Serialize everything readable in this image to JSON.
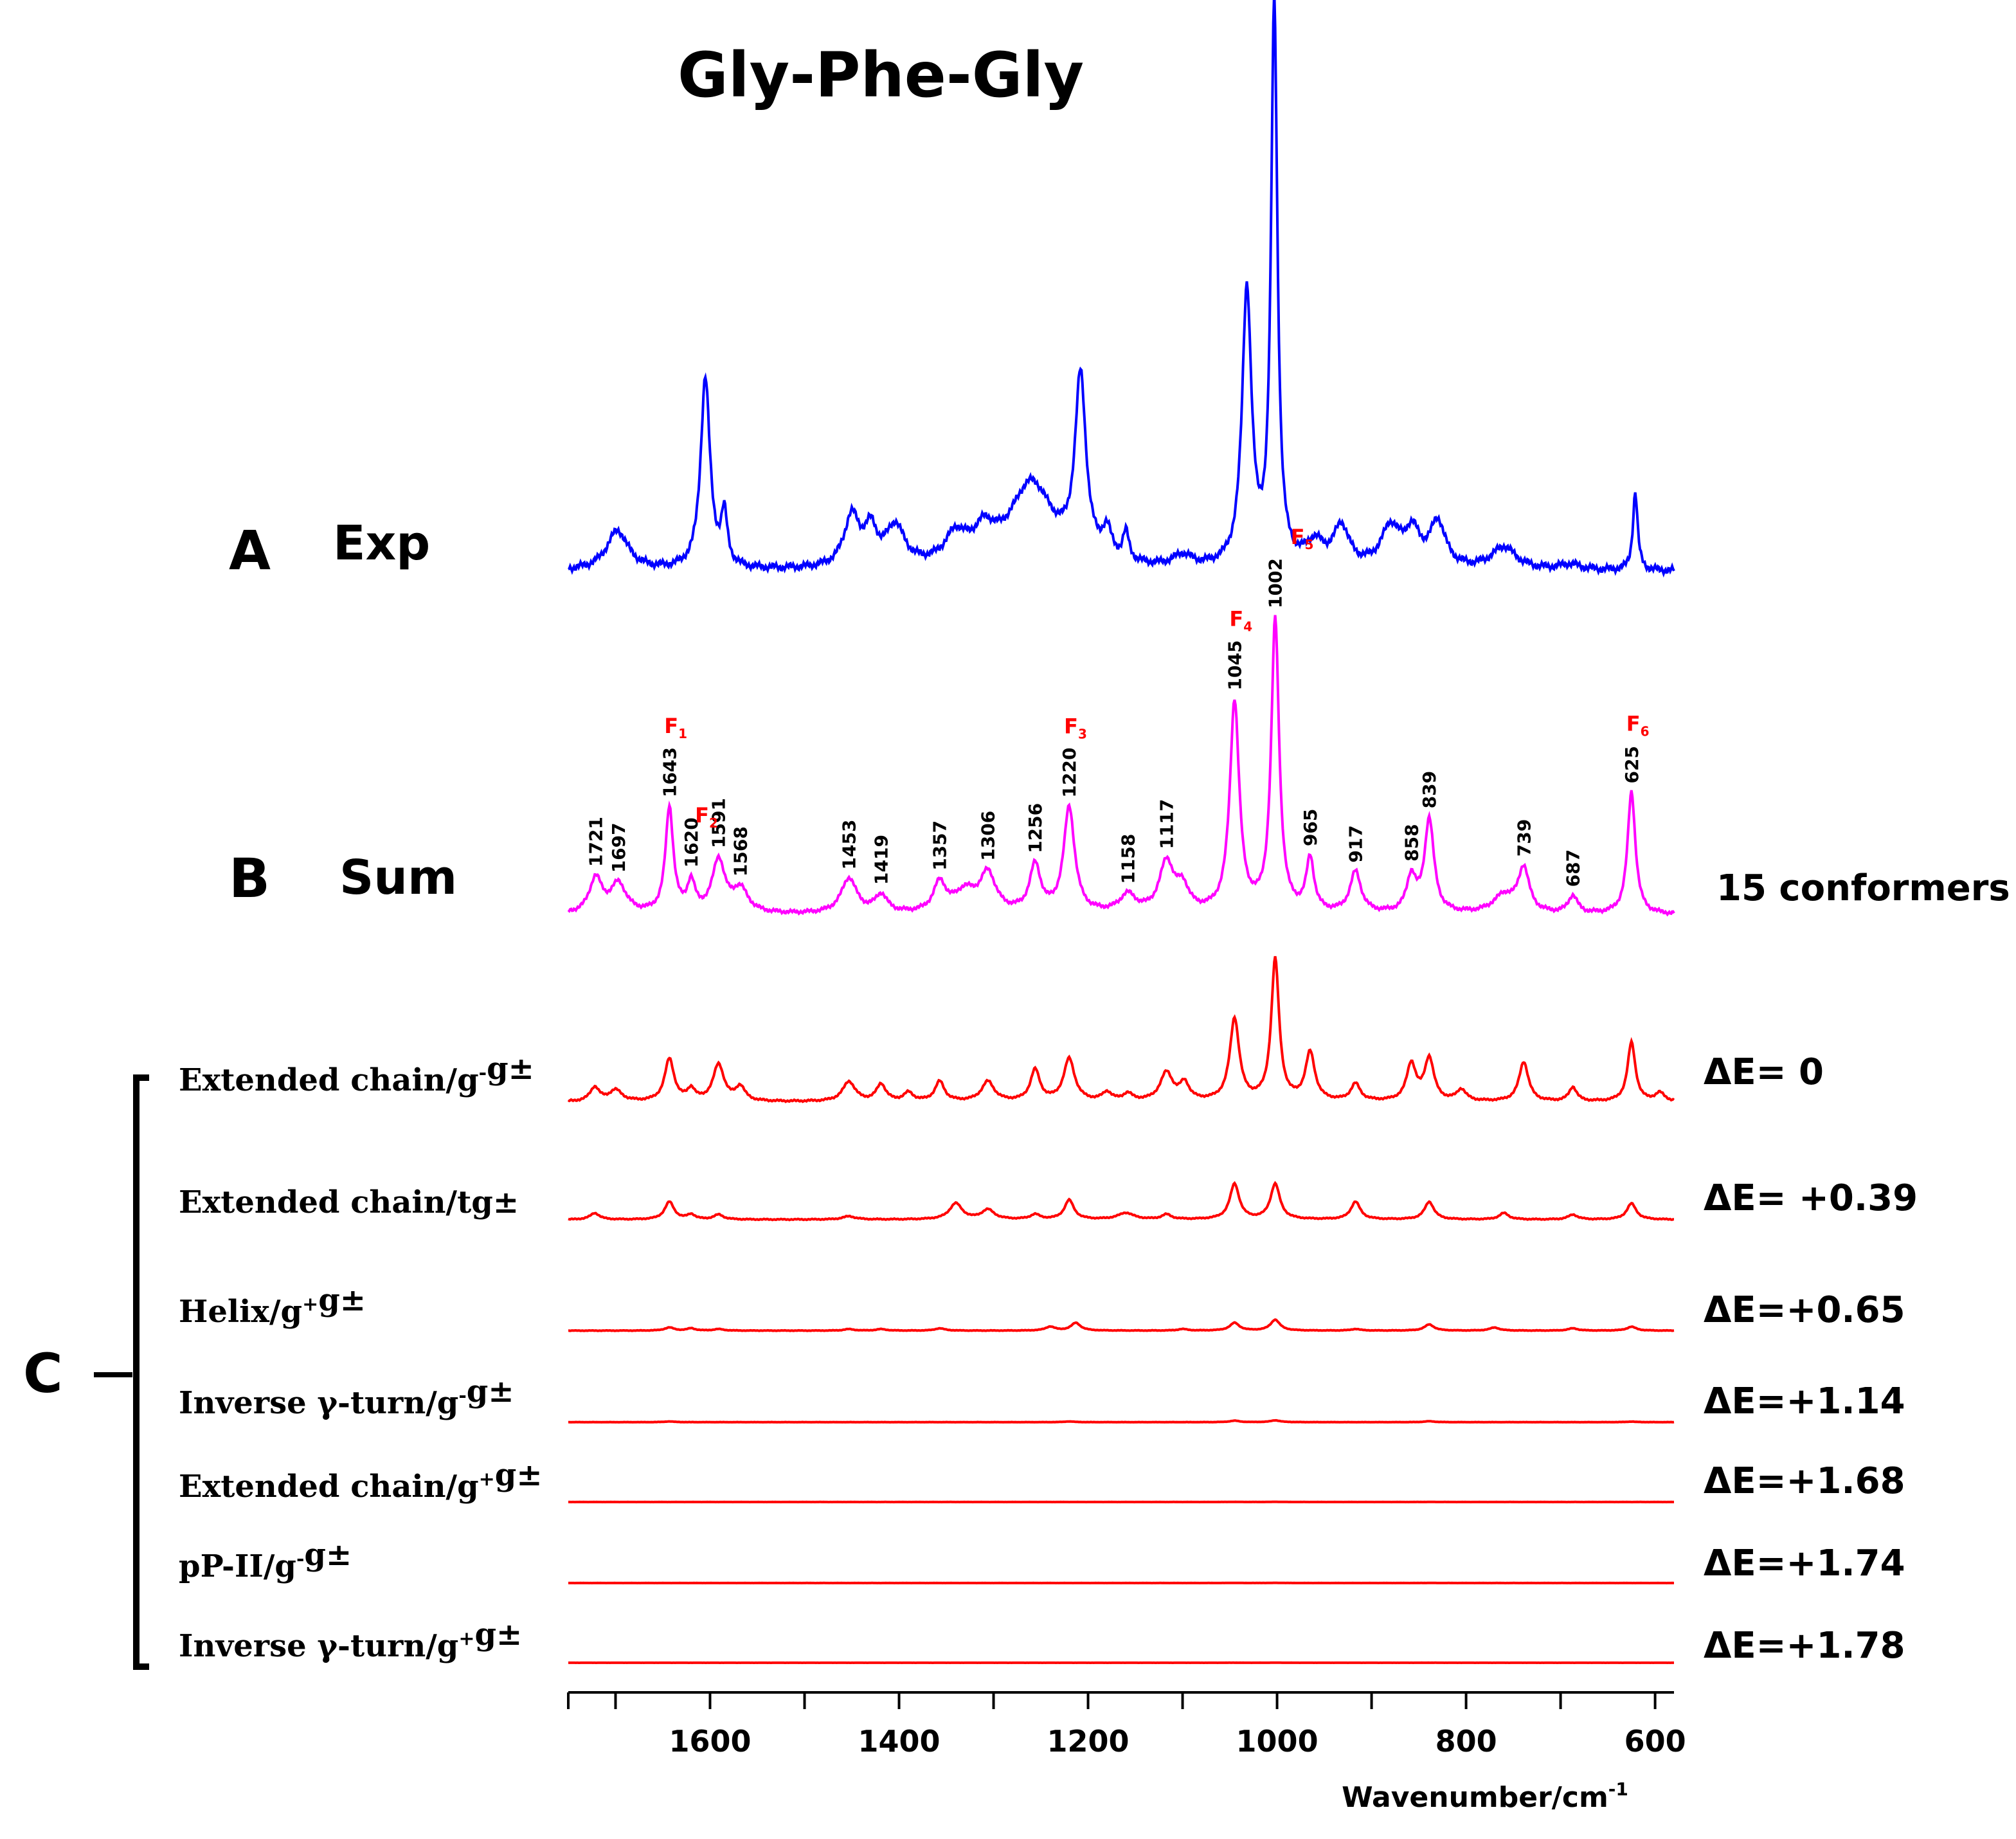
{
  "title": "Gly-Phe-Gly",
  "panels": {
    "a": {
      "letter": "A",
      "name": "Exp"
    },
    "b": {
      "letter": "B",
      "name": "Sum",
      "note": "15 conformers"
    },
    "c": {
      "letter": "C"
    }
  },
  "colors": {
    "exp": "#0000ff",
    "sum": "#ff00ff",
    "conformer": "#ff0000",
    "marker": "#ff0000",
    "text": "#000000"
  },
  "x_axis": {
    "label": "Wavenumber/cm",
    "label_sup": "-1",
    "reversed": true,
    "range": [
      1750,
      580
    ],
    "major_ticks": [
      1600,
      1400,
      1200,
      1000,
      800,
      600
    ],
    "minor_ticks": [
      1700,
      1500,
      1300,
      1100,
      900,
      700
    ]
  },
  "chart_data": {
    "type": "line",
    "title": "Gly-Phe-Gly",
    "xlabel": "Wavenumber/cm-1",
    "xlim": [
      1750,
      580
    ],
    "x_reversed": true,
    "series": [
      {
        "name": "Exp",
        "panel": "A",
        "baseline": 0.03,
        "peaks": [
          [
            1698,
            0.07,
            14
          ],
          [
            1605,
            0.34,
            6
          ],
          [
            1585,
            0.09,
            4
          ],
          [
            1450,
            0.09,
            10
          ],
          [
            1430,
            0.06,
            8
          ],
          [
            1404,
            0.07,
            12
          ],
          [
            1340,
            0.05,
            14
          ],
          [
            1310,
            0.05,
            14
          ],
          [
            1260,
            0.15,
            28
          ],
          [
            1208,
            0.32,
            7
          ],
          [
            1180,
            0.05,
            6
          ],
          [
            1160,
            0.05,
            4
          ],
          [
            1100,
            0.02,
            12
          ],
          [
            1032,
            0.49,
            6
          ],
          [
            1003,
            1.0,
            4
          ],
          [
            960,
            0.04,
            12
          ],
          [
            932,
            0.07,
            10
          ],
          [
            880,
            0.07,
            12
          ],
          [
            857,
            0.06,
            10
          ],
          [
            830,
            0.08,
            10
          ],
          [
            760,
            0.04,
            16
          ],
          [
            690,
            0.01,
            14
          ],
          [
            621,
            0.14,
            3
          ]
        ]
      },
      {
        "name": "Sum",
        "panel": "B",
        "baseline": 0.02,
        "peaks": [
          [
            1721,
            0.12,
            8
          ],
          [
            1697,
            0.1,
            10
          ],
          [
            1643,
            0.36,
            5
          ],
          [
            1620,
            0.1,
            5
          ],
          [
            1591,
            0.18,
            8
          ],
          [
            1568,
            0.08,
            10
          ],
          [
            1453,
            0.12,
            10
          ],
          [
            1419,
            0.06,
            8
          ],
          [
            1357,
            0.1,
            8
          ],
          [
            1330,
            0.07,
            14
          ],
          [
            1306,
            0.13,
            10
          ],
          [
            1256,
            0.16,
            7
          ],
          [
            1220,
            0.36,
            7
          ],
          [
            1158,
            0.06,
            10
          ],
          [
            1117,
            0.17,
            9
          ],
          [
            1100,
            0.08,
            8
          ],
          [
            1045,
            0.72,
            6
          ],
          [
            1002,
            1.0,
            5
          ],
          [
            965,
            0.18,
            5
          ],
          [
            917,
            0.14,
            7
          ],
          [
            858,
            0.12,
            6
          ],
          [
            839,
            0.32,
            6
          ],
          [
            739,
            0.15,
            7
          ],
          [
            760,
            0.06,
            14
          ],
          [
            687,
            0.06,
            6
          ],
          [
            625,
            0.42,
            5
          ]
        ]
      },
      {
        "name": "Extended chain/g-g±",
        "panel": "C",
        "delta_e": "ΔE= 0",
        "baseline": 0.01,
        "peaks": [
          [
            1722,
            0.1,
            6
          ],
          [
            1700,
            0.08,
            8
          ],
          [
            1643,
            0.3,
            6
          ],
          [
            1620,
            0.08,
            5
          ],
          [
            1591,
            0.26,
            7
          ],
          [
            1568,
            0.1,
            6
          ],
          [
            1453,
            0.14,
            8
          ],
          [
            1419,
            0.12,
            6
          ],
          [
            1390,
            0.06,
            6
          ],
          [
            1357,
            0.14,
            6
          ],
          [
            1306,
            0.14,
            8
          ],
          [
            1256,
            0.22,
            6
          ],
          [
            1220,
            0.3,
            7
          ],
          [
            1180,
            0.06,
            6
          ],
          [
            1158,
            0.05,
            6
          ],
          [
            1117,
            0.2,
            8
          ],
          [
            1098,
            0.12,
            6
          ],
          [
            1045,
            0.58,
            6
          ],
          [
            1002,
            1.0,
            5
          ],
          [
            965,
            0.34,
            6
          ],
          [
            917,
            0.12,
            6
          ],
          [
            858,
            0.26,
            6
          ],
          [
            839,
            0.3,
            6
          ],
          [
            805,
            0.08,
            6
          ],
          [
            739,
            0.28,
            6
          ],
          [
            687,
            0.1,
            5
          ],
          [
            625,
            0.42,
            5
          ],
          [
            595,
            0.06,
            6
          ]
        ]
      },
      {
        "name": "Extended chain/tg±",
        "panel": "C",
        "delta_e": "ΔE= +0.39",
        "baseline": 0.01,
        "peaks": [
          [
            1722,
            0.08,
            6
          ],
          [
            1643,
            0.22,
            6
          ],
          [
            1620,
            0.06,
            5
          ],
          [
            1591,
            0.06,
            6
          ],
          [
            1453,
            0.04,
            8
          ],
          [
            1340,
            0.2,
            8
          ],
          [
            1306,
            0.12,
            8
          ],
          [
            1256,
            0.06,
            6
          ],
          [
            1220,
            0.24,
            6
          ],
          [
            1160,
            0.08,
            10
          ],
          [
            1117,
            0.06,
            6
          ],
          [
            1045,
            0.44,
            6
          ],
          [
            1002,
            0.44,
            6
          ],
          [
            917,
            0.22,
            6
          ],
          [
            839,
            0.22,
            6
          ],
          [
            760,
            0.08,
            6
          ],
          [
            687,
            0.06,
            6
          ],
          [
            625,
            0.2,
            6
          ]
        ]
      },
      {
        "name": "Helix/g+g±",
        "panel": "C",
        "delta_e": "ΔE=+0.65",
        "baseline": 0.01,
        "peaks": [
          [
            1643,
            0.08,
            6
          ],
          [
            1620,
            0.06,
            5
          ],
          [
            1591,
            0.04,
            6
          ],
          [
            1453,
            0.04,
            6
          ],
          [
            1419,
            0.04,
            6
          ],
          [
            1357,
            0.06,
            6
          ],
          [
            1240,
            0.1,
            6
          ],
          [
            1213,
            0.2,
            6
          ],
          [
            1100,
            0.04,
            6
          ],
          [
            1045,
            0.2,
            6
          ],
          [
            1002,
            0.28,
            6
          ],
          [
            917,
            0.04,
            6
          ],
          [
            839,
            0.16,
            6
          ],
          [
            770,
            0.08,
            6
          ],
          [
            687,
            0.06,
            6
          ],
          [
            625,
            0.1,
            6
          ]
        ]
      },
      {
        "name": "Inverse γ-turn/g-g±",
        "panel": "C",
        "delta_e": "ΔE=+1.14",
        "baseline": 0.01,
        "peaks": [
          [
            1643,
            0.04,
            6
          ],
          [
            1220,
            0.04,
            6
          ],
          [
            1045,
            0.08,
            6
          ],
          [
            1002,
            0.1,
            6
          ],
          [
            839,
            0.05,
            6
          ],
          [
            625,
            0.03,
            6
          ]
        ]
      },
      {
        "name": "Extended chain/g+g±",
        "panel": "C",
        "delta_e": "ΔE=+1.68",
        "baseline": 0.01,
        "peaks": [
          [
            1045,
            0.02,
            6
          ],
          [
            1002,
            0.03,
            6
          ],
          [
            839,
            0.01,
            6
          ]
        ]
      },
      {
        "name": "pP-II/g-g±",
        "panel": "C",
        "delta_e": "ΔE=+1.74",
        "baseline": 0.01,
        "peaks": [
          [
            1045,
            0.02,
            6
          ],
          [
            1002,
            0.03,
            6
          ],
          [
            839,
            0.01,
            6
          ]
        ]
      },
      {
        "name": "Inverse γ-turn/g+g±",
        "panel": "C",
        "delta_e": "ΔE=+1.78",
        "baseline": 0.01,
        "peaks": [
          [
            1045,
            0.01,
            6
          ],
          [
            1002,
            0.02,
            6
          ],
          [
            839,
            0.01,
            6
          ]
        ]
      }
    ],
    "peak_labels": [
      {
        "x": 1721,
        "text": "1721"
      },
      {
        "x": 1697,
        "text": "1697"
      },
      {
        "x": 1643,
        "text": "1643"
      },
      {
        "x": 1620,
        "text": "1620"
      },
      {
        "x": 1591,
        "text": "1591"
      },
      {
        "x": 1568,
        "text": "1568"
      },
      {
        "x": 1453,
        "text": "1453"
      },
      {
        "x": 1419,
        "text": "1419"
      },
      {
        "x": 1357,
        "text": "1357"
      },
      {
        "x": 1306,
        "text": "1306"
      },
      {
        "x": 1256,
        "text": "1256"
      },
      {
        "x": 1220,
        "text": "1220"
      },
      {
        "x": 1158,
        "text": "1158"
      },
      {
        "x": 1117,
        "text": "1117"
      },
      {
        "x": 1045,
        "text": "1045"
      },
      {
        "x": 1002,
        "text": "1002"
      },
      {
        "x": 965,
        "text": "965"
      },
      {
        "x": 917,
        "text": "917"
      },
      {
        "x": 858,
        "text": "858"
      },
      {
        "x": 839,
        "text": "839"
      },
      {
        "x": 739,
        "text": "739"
      },
      {
        "x": 687,
        "text": "687"
      },
      {
        "x": 625,
        "text": "625"
      }
    ],
    "f_markers": [
      {
        "x": 1643,
        "text": "F",
        "sub": "1"
      },
      {
        "x": 1620,
        "text": "F",
        "sub": "2"
      },
      {
        "x": 1220,
        "text": "F",
        "sub": "3"
      },
      {
        "x": 1045,
        "text": "F",
        "sub": "4"
      },
      {
        "x": 1002,
        "text": "F",
        "sub": "5"
      },
      {
        "x": 625,
        "text": "F",
        "sub": "6"
      }
    ]
  }
}
